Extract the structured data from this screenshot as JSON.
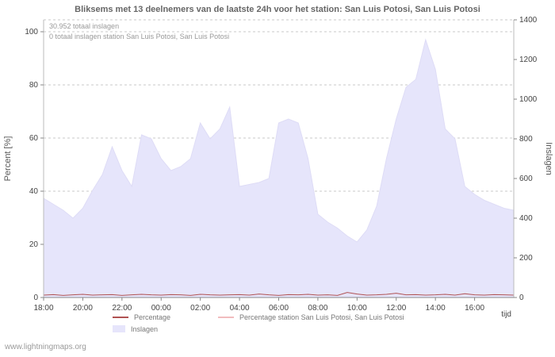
{
  "header": {
    "title": "Bliksems met 13 deelnemers van de laatste 24h voor het station: San Luis Potosi, San Luis Potosi"
  },
  "annotations": {
    "total": "30.952 totaal inslagen",
    "station_total": "0 totaal inslagen station San Luis Potosi, San Luis Potosi"
  },
  "axes": {
    "left_label": "Percent  [%]",
    "right_label": "Inslagen",
    "x_label": "tijd",
    "left_ticks": [
      0,
      20,
      40,
      60,
      80,
      100
    ],
    "right_ticks": [
      0,
      200,
      400,
      600,
      800,
      1000,
      1200,
      1400
    ],
    "x_ticks": [
      "18:00",
      "20:00",
      "22:00",
      "00:00",
      "02:00",
      "04:00",
      "06:00",
      "08:00",
      "10:00",
      "12:00",
      "14:00",
      "16:00"
    ]
  },
  "legend": [
    {
      "label": "Percentage",
      "type": "line",
      "color": "#b05252"
    },
    {
      "label": "Percentage station San Luis Potosi, San Luis Potosi",
      "type": "line",
      "color": "#f1bcbe"
    },
    {
      "label": "Inslagen",
      "type": "area",
      "color": "#e6e5fb"
    }
  ],
  "watermark": "www.lightningmaps.org",
  "chart_data": {
    "type": "area",
    "title": "Bliksems met 13 deelnemers van de laatste 24h voor het station: San Luis Potosi, San Luis Potosi",
    "xlabel": "tijd",
    "ylabel_left": "Percent  [%]",
    "ylabel_right": "Inslagen",
    "left_max": 100,
    "right_max": 1400,
    "span_hours": 24,
    "interval_minutes": 30,
    "x_start": "18:00",
    "grid": "horizontal-dashed",
    "legend_position": "bottom",
    "series": [
      {
        "name": "Inslagen",
        "type": "area",
        "axis": "right",
        "color": "#e6e5fb",
        "values": [
          500,
          470,
          440,
          400,
          450,
          540,
          620,
          760,
          640,
          560,
          820,
          800,
          700,
          640,
          660,
          700,
          880,
          800,
          850,
          960,
          560,
          570,
          580,
          600,
          880,
          900,
          880,
          700,
          420,
          380,
          350,
          310,
          280,
          340,
          460,
          700,
          900,
          1060,
          1100,
          1300,
          1150,
          850,
          800,
          560,
          520,
          490,
          470,
          450,
          440
        ]
      },
      {
        "name": "Percentage",
        "type": "line",
        "axis": "left",
        "color": "#b05252",
        "values": [
          0.9,
          1.1,
          0.8,
          1.0,
          1.2,
          0.9,
          1.0,
          1.1,
          0.8,
          1.0,
          1.2,
          1.0,
          0.9,
          1.1,
          1.0,
          0.8,
          1.2,
          1.0,
          0.9,
          1.0,
          1.1,
          0.9,
          1.3,
          1.0,
          0.8,
          1.1,
          1.0,
          1.2,
          0.9,
          1.0,
          0.8,
          1.9,
          1.3,
          0.9,
          1.0,
          1.2,
          1.6,
          1.0,
          1.1,
          0.9,
          1.0,
          1.2,
          0.9,
          1.4,
          1.0,
          0.9,
          1.1,
          1.0,
          0.9
        ]
      },
      {
        "name": "Percentage station San Luis Potosi, San Luis Potosi",
        "type": "line",
        "axis": "left",
        "color": "#f1bcbe",
        "values": [
          0,
          0,
          0,
          0,
          0,
          0,
          0,
          0,
          0,
          0,
          0,
          0,
          0,
          0,
          0,
          0,
          0,
          0,
          0,
          0,
          0,
          0,
          0,
          0,
          0,
          0,
          0,
          0,
          0,
          0,
          0,
          0,
          0,
          0,
          0,
          0,
          0,
          0,
          0,
          0,
          0,
          0,
          0,
          0,
          0,
          0,
          0,
          0,
          0
        ]
      }
    ]
  }
}
